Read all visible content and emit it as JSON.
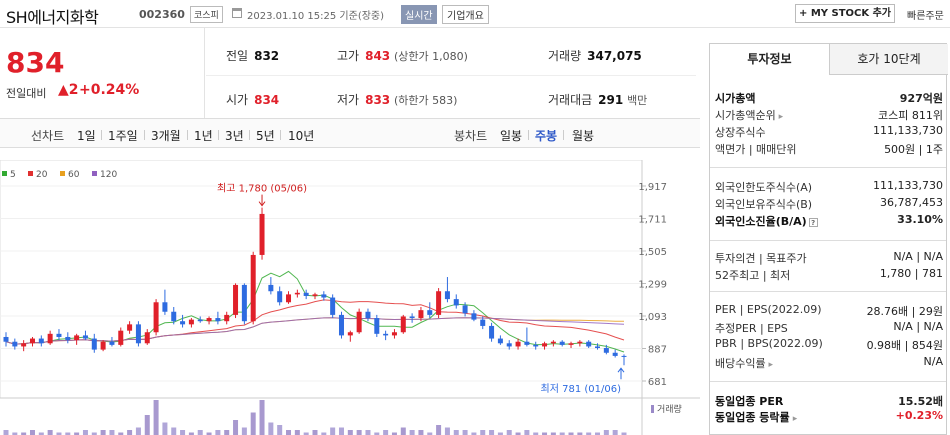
{
  "header": {
    "name": "SH에너지화학",
    "code": "002360",
    "market": "코스피",
    "time": "2023.01.10 15:25 기준(장중)",
    "realtime": "실시간",
    "corp": "기업개요",
    "mystock": "+ MY STOCK 추가",
    "quick": "빠른주문"
  },
  "price": {
    "now": "834",
    "change_label": "전일대비",
    "change": "▲2",
    "change_pct": "+0.24%"
  },
  "quote": {
    "prev_label": "전일",
    "prev": "832",
    "high_label": "고가",
    "high": "843",
    "upper": "(상한가 1,080)",
    "vol_label": "거래량",
    "vol": "347,075",
    "open_label": "시가",
    "open": "834",
    "low_label": "저가",
    "low": "833",
    "lower": "(하한가 583)",
    "amt_label": "거래대금",
    "amt": "291",
    "amt_unit": "백만"
  },
  "toolbar": {
    "line": "선차트",
    "periods": [
      "1일",
      "1주일",
      "3개월",
      "1년",
      "3년",
      "5년",
      "10년"
    ],
    "candle": "봉차트",
    "candles": [
      "일봉",
      "주봉",
      "월봉"
    ]
  },
  "chart_data": {
    "type": "candlestick",
    "legend": [
      {
        "name": "5",
        "color": "#33aa33"
      },
      {
        "name": "20",
        "color": "#e03030"
      },
      {
        "name": "60",
        "color": "#e8a020"
      },
      {
        "name": "120",
        "color": "#9060c0"
      }
    ],
    "y_ticks": [
      "1,917",
      "1,711",
      "1,505",
      "1,299",
      "1,093",
      "887",
      "681"
    ],
    "ylim": [
      681,
      1917
    ],
    "annotations": {
      "high": "최고 1,780 (05/06)",
      "low": "최저 781 (01/06)"
    },
    "volume_label": "거래량",
    "ohlc": [
      [
        960,
        990,
        900,
        930
      ],
      [
        930,
        950,
        880,
        900
      ],
      [
        900,
        940,
        870,
        920
      ],
      [
        920,
        960,
        900,
        950
      ],
      [
        950,
        970,
        900,
        920
      ],
      [
        920,
        1000,
        910,
        980
      ],
      [
        980,
        1010,
        940,
        960
      ],
      [
        960,
        990,
        920,
        940
      ],
      [
        940,
        980,
        910,
        970
      ],
      [
        970,
        1000,
        940,
        950
      ],
      [
        950,
        980,
        860,
        880
      ],
      [
        880,
        940,
        870,
        930
      ],
      [
        930,
        960,
        900,
        910
      ],
      [
        910,
        1020,
        900,
        1000
      ],
      [
        1000,
        1060,
        980,
        1040
      ],
      [
        1040,
        1060,
        900,
        920
      ],
      [
        920,
        1010,
        910,
        990
      ],
      [
        990,
        1200,
        970,
        1180
      ],
      [
        1180,
        1260,
        1100,
        1120
      ],
      [
        1120,
        1150,
        1040,
        1060
      ],
      [
        1060,
        1100,
        1020,
        1040
      ],
      [
        1040,
        1080,
        1020,
        1070
      ],
      [
        1070,
        1090,
        1050,
        1060
      ],
      [
        1060,
        1090,
        1040,
        1080
      ],
      [
        1080,
        1120,
        1040,
        1060
      ],
      [
        1060,
        1120,
        1040,
        1100
      ],
      [
        1100,
        1300,
        1080,
        1290
      ],
      [
        1290,
        1300,
        1040,
        1060
      ],
      [
        1060,
        1500,
        1040,
        1480
      ],
      [
        1480,
        1780,
        1450,
        1740
      ],
      [
        1290,
        1340,
        1230,
        1250
      ],
      [
        1250,
        1280,
        1160,
        1180
      ],
      [
        1180,
        1250,
        1170,
        1230
      ],
      [
        1230,
        1260,
        1210,
        1240
      ],
      [
        1240,
        1260,
        1200,
        1220
      ],
      [
        1220,
        1240,
        1200,
        1230
      ],
      [
        1230,
        1250,
        1190,
        1210
      ],
      [
        1210,
        1230,
        1080,
        1100
      ],
      [
        1100,
        1120,
        950,
        970
      ],
      [
        970,
        1000,
        930,
        990
      ],
      [
        990,
        1140,
        980,
        1120
      ],
      [
        1120,
        1140,
        1060,
        1080
      ],
      [
        1080,
        1100,
        960,
        980
      ],
      [
        980,
        1000,
        940,
        970
      ],
      [
        970,
        1010,
        950,
        990
      ],
      [
        990,
        1100,
        980,
        1090
      ],
      [
        1090,
        1110,
        1050,
        1080
      ],
      [
        1080,
        1150,
        1060,
        1130
      ],
      [
        1130,
        1180,
        1080,
        1100
      ],
      [
        1100,
        1270,
        1080,
        1250
      ],
      [
        1250,
        1340,
        1180,
        1200
      ],
      [
        1200,
        1230,
        1140,
        1160
      ],
      [
        1160,
        1180,
        1090,
        1110
      ],
      [
        1110,
        1130,
        1060,
        1070
      ],
      [
        1070,
        1090,
        1010,
        1030
      ],
      [
        1030,
        1050,
        930,
        950
      ],
      [
        950,
        970,
        910,
        920
      ],
      [
        920,
        940,
        880,
        900
      ],
      [
        900,
        950,
        880,
        930
      ],
      [
        930,
        1020,
        900,
        910
      ],
      [
        910,
        930,
        880,
        900
      ],
      [
        900,
        930,
        880,
        920
      ],
      [
        920,
        940,
        900,
        930
      ],
      [
        930,
        940,
        900,
        910
      ],
      [
        910,
        930,
        890,
        920
      ],
      [
        920,
        940,
        900,
        930
      ],
      [
        930,
        940,
        890,
        900
      ],
      [
        900,
        920,
        880,
        890
      ],
      [
        890,
        910,
        850,
        860
      ],
      [
        860,
        880,
        830,
        840
      ],
      [
        840,
        850,
        781,
        834
      ]
    ],
    "volume": [
      2,
      1,
      1,
      2,
      1,
      2,
      1,
      1,
      1,
      2,
      1,
      2,
      2,
      1,
      2,
      3,
      8,
      14,
      5,
      3,
      2,
      1,
      2,
      1,
      2,
      2,
      6,
      3,
      9,
      14,
      5,
      4,
      2,
      2,
      1,
      2,
      1,
      3,
      3,
      2,
      2,
      2,
      1,
      2,
      1,
      3,
      2,
      2,
      1,
      4,
      3,
      2,
      2,
      1,
      2,
      2,
      1,
      2,
      1,
      2,
      1,
      1,
      1,
      1,
      1,
      1,
      1,
      1,
      2,
      2,
      1
    ]
  },
  "invest": {
    "tab1": "투자정보",
    "tab2": "호가 10단계",
    "rows": [
      {
        "l": "시가총액",
        "v": "927억원"
      },
      {
        "l": "시가총액순위",
        "v": "코스피 811위"
      },
      {
        "l": "상장주식수",
        "v": "111,133,730"
      },
      {
        "l": "액면가 | 매매단위",
        "v": "500원 | 1주"
      },
      {
        "l": "외국인한도주식수(A)",
        "v": "111,133,730"
      },
      {
        "l": "외국인보유주식수(B)",
        "v": "36,787,453"
      },
      {
        "l": "외국인소진율(B/A)",
        "v": "33.10%"
      },
      {
        "l": "투자의견 | 목표주가",
        "v": "N/A | N/A"
      },
      {
        "l": "52주최고 | 최저",
        "v": "1,780 | 781"
      },
      {
        "l": "PER | EPS(2022.09)",
        "v": "28.76배 | 29원"
      },
      {
        "l": "추정PER | EPS",
        "v": "N/A | N/A"
      },
      {
        "l": "PBR | BPS(2022.09)",
        "v": "0.98배 | 854원"
      },
      {
        "l": "배당수익률",
        "v": "N/A"
      },
      {
        "l": "동일업종 PER",
        "v": "15.52배"
      },
      {
        "l": "동일업종 등락률",
        "v": "+0.23%"
      }
    ]
  }
}
